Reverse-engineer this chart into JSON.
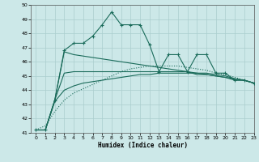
{
  "xlabel": "Humidex (Indice chaleur)",
  "x": [
    0,
    1,
    2,
    3,
    4,
    5,
    6,
    7,
    8,
    9,
    10,
    11,
    12,
    13,
    14,
    15,
    16,
    17,
    18,
    19,
    20,
    21,
    22,
    23
  ],
  "line_spiky": [
    41.2,
    41.2,
    43.3,
    46.8,
    47.3,
    47.3,
    47.8,
    48.6,
    49.5,
    48.6,
    48.6,
    48.6,
    47.2,
    45.3,
    46.5,
    46.5,
    45.3,
    46.5,
    46.5,
    45.2,
    45.2,
    44.7,
    44.7,
    44.5
  ],
  "line_upper_flat": [
    41.2,
    41.2,
    43.3,
    45.2,
    45.3,
    45.3,
    45.3,
    45.3,
    45.3,
    45.3,
    45.3,
    45.3,
    45.3,
    45.3,
    45.3,
    45.3,
    45.3,
    45.1,
    45.1,
    45.0,
    44.9,
    44.7,
    44.7,
    44.5
  ],
  "line_diagonal_down": [
    41.2,
    41.2,
    43.3,
    46.7,
    46.5,
    46.4,
    46.3,
    46.2,
    46.1,
    46.0,
    45.9,
    45.8,
    45.7,
    45.6,
    45.5,
    45.4,
    45.3,
    45.2,
    45.1,
    45.0,
    44.9,
    44.8,
    44.7,
    44.5
  ],
  "line_diagonal_up_dotted": [
    41.2,
    41.5,
    42.5,
    43.3,
    43.8,
    44.1,
    44.4,
    44.7,
    45.0,
    45.3,
    45.5,
    45.6,
    45.7,
    45.7,
    45.7,
    45.7,
    45.6,
    45.5,
    45.4,
    45.2,
    45.1,
    44.9,
    44.7,
    44.5
  ],
  "line_low_curve": [
    41.2,
    41.2,
    43.2,
    44.0,
    44.3,
    44.5,
    44.6,
    44.7,
    44.8,
    44.9,
    45.0,
    45.1,
    45.1,
    45.2,
    45.2,
    45.2,
    45.2,
    45.2,
    45.2,
    45.1,
    45.0,
    44.8,
    44.7,
    44.5
  ],
  "ylim": [
    41,
    50
  ],
  "xlim": [
    -0.5,
    23
  ],
  "yticks": [
    41,
    42,
    43,
    44,
    45,
    46,
    47,
    48,
    49,
    50
  ],
  "xticks": [
    0,
    1,
    2,
    3,
    4,
    5,
    6,
    7,
    8,
    9,
    10,
    11,
    12,
    13,
    14,
    15,
    16,
    17,
    18,
    19,
    20,
    21,
    22,
    23
  ],
  "bg_color": "#cce8e8",
  "grid_color": "#aacece",
  "line_color": "#1a6b5a",
  "markersize": 3.5,
  "lw": 0.8
}
